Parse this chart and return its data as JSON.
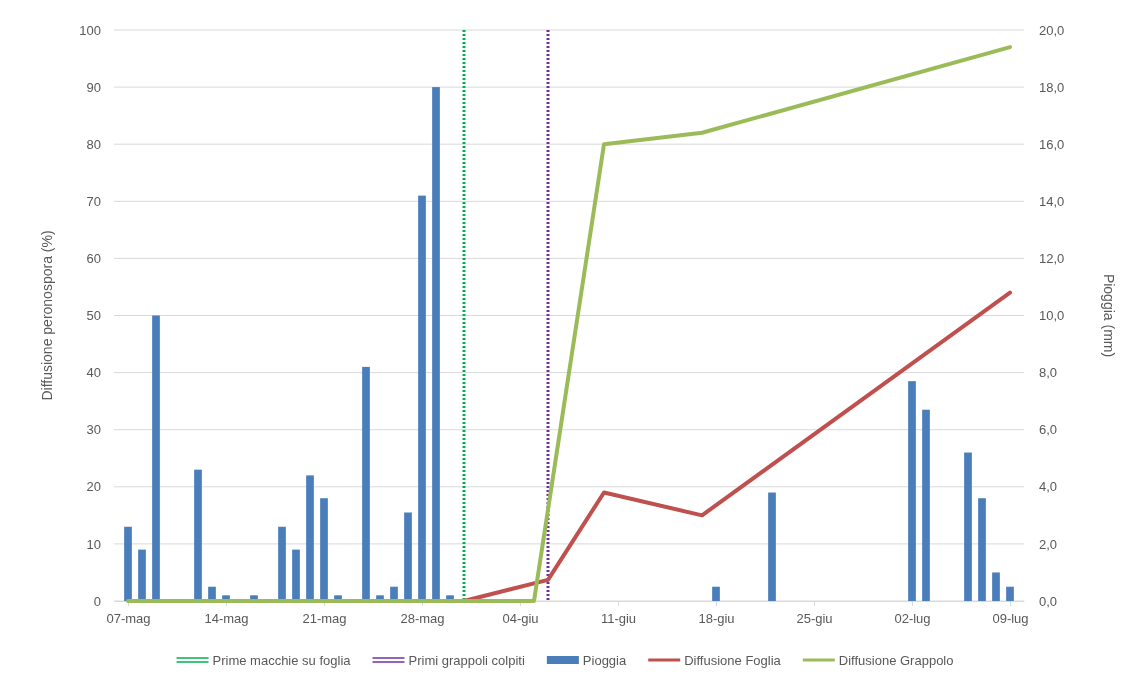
{
  "chart_data": {
    "type": "bar",
    "ylabel": "Diffusione peronospora (%)",
    "y2label": "Pioggia (mm)",
    "xlim": [
      "--05-06",
      "--07-10"
    ],
    "xticks": [
      {
        "value": "--05-07",
        "label": "07-mag"
      },
      {
        "value": "--05-14",
        "label": "14-mag"
      },
      {
        "value": "--05-21",
        "label": "21-mag"
      },
      {
        "value": "--05-28",
        "label": "28-mag"
      },
      {
        "value": "--06-04",
        "label": "04-giu"
      },
      {
        "value": "--06-11",
        "label": "11-giu"
      },
      {
        "value": "--06-18",
        "label": "18-giu"
      },
      {
        "value": "--06-25",
        "label": "25-giu"
      },
      {
        "value": "--07-02",
        "label": "02-lug"
      },
      {
        "value": "--07-09",
        "label": "09-lug"
      }
    ],
    "ylim": [
      0,
      100
    ],
    "yticks": [
      0,
      10,
      20,
      30,
      40,
      50,
      60,
      70,
      80,
      90,
      100
    ],
    "y2lim": [
      0,
      20
    ],
    "y2ticks": [
      {
        "value": 0,
        "label": "0,0"
      },
      {
        "value": 2,
        "label": "2,0"
      },
      {
        "value": 4,
        "label": "4,0"
      },
      {
        "value": 6,
        "label": "6,0"
      },
      {
        "value": 8,
        "label": "8,0"
      },
      {
        "value": 10,
        "label": "10,0"
      },
      {
        "value": 12,
        "label": "12,0"
      },
      {
        "value": 14,
        "label": "14,0"
      },
      {
        "value": 16,
        "label": "16,0"
      },
      {
        "value": 18,
        "label": "18,0"
      },
      {
        "value": 20,
        "label": "20,0"
      }
    ],
    "grid": "y",
    "legend": "bottom",
    "ref_lines": [
      {
        "axis": "x",
        "value": "--05-31",
        "label": "Prime macchie su foglia",
        "color": "#00b050",
        "line_style": "dotted"
      },
      {
        "axis": "x",
        "value": "--06-06",
        "label": "Primi grappoli colpiti",
        "color": "#7030a0",
        "line_style": "dotted"
      }
    ],
    "series": [
      {
        "name": "Pioggia",
        "axis": "y2",
        "color": "#4a7ebb",
        "x": [
          "--05-07",
          "--05-08",
          "--05-09",
          "--05-12",
          "--05-13",
          "--05-14",
          "--05-16",
          "--05-18",
          "--05-19",
          "--05-20",
          "--05-21",
          "--05-22",
          "--05-24",
          "--05-25",
          "--05-26",
          "--05-27",
          "--05-28",
          "--05-29",
          "--05-30",
          "--06-18",
          "--06-22",
          "--07-02",
          "--07-03",
          "--07-06",
          "--07-07",
          "--07-08",
          "--07-09"
        ],
        "values": [
          2.6,
          1.8,
          10.0,
          4.6,
          0.5,
          0.2,
          0.2,
          2.6,
          1.8,
          4.4,
          3.6,
          0.2,
          8.2,
          0.2,
          0.5,
          3.1,
          14.2,
          18.0,
          0.2,
          0.5,
          3.8,
          7.7,
          6.7,
          5.2,
          3.6,
          1.0,
          0.5
        ]
      },
      {
        "name": "Diffusione Foglia",
        "type": "line",
        "color": "#c0504d",
        "x": [
          "--05-31",
          "--06-06",
          "--06-10",
          "--06-17",
          "--07-09"
        ],
        "values": [
          0,
          3.7,
          19,
          15,
          54
        ]
      },
      {
        "name": "Diffusione Grappolo",
        "type": "line",
        "color": "#9bbb59",
        "x": [
          "--05-07",
          "--06-05",
          "--06-10",
          "--06-17",
          "--07-09"
        ],
        "values": [
          0,
          0,
          80,
          82,
          97
        ]
      }
    ]
  }
}
